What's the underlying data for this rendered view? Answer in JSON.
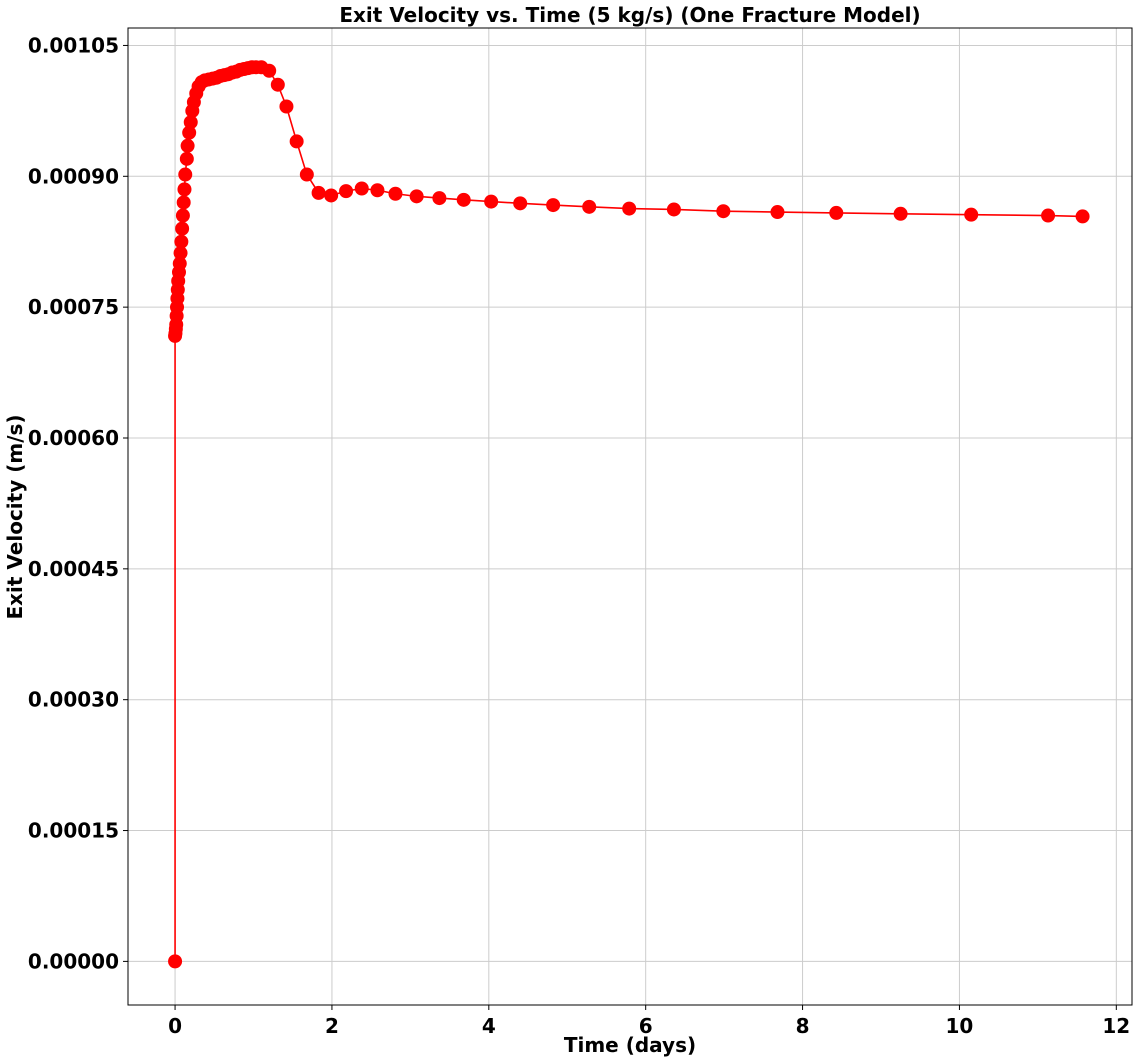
{
  "chart_data": {
    "type": "line",
    "title": "Exit Velocity vs. Time (5 kg/s) (One Fracture Model)",
    "xlabel": "Time (days)",
    "ylabel": "Exit Velocity (m/s)",
    "xlim": [
      -0.6,
      12.2
    ],
    "ylim": [
      -5e-05,
      0.00107
    ],
    "x_ticks": [
      0,
      2,
      4,
      6,
      8,
      10,
      12
    ],
    "x_tick_labels": [
      "0",
      "2",
      "4",
      "6",
      "8",
      "10",
      "12"
    ],
    "y_ticks": [
      0.0,
      0.00015,
      0.0003,
      0.00045,
      0.0006,
      0.00075,
      0.0009,
      0.00105
    ],
    "y_tick_labels": [
      "0.00000",
      "0.00015",
      "0.00030",
      "0.00045",
      "0.00060",
      "0.00075",
      "0.00090",
      "0.00105"
    ],
    "grid": true,
    "series": [
      {
        "color": "#ff0000",
        "marker": "circle",
        "x": [
          0.0,
          0.0,
          0.005,
          0.01,
          0.015,
          0.02,
          0.025,
          0.03,
          0.035,
          0.04,
          0.05,
          0.06,
          0.07,
          0.08,
          0.09,
          0.1,
          0.11,
          0.12,
          0.13,
          0.15,
          0.16,
          0.18,
          0.2,
          0.22,
          0.24,
          0.27,
          0.3,
          0.34,
          0.38,
          0.43,
          0.48,
          0.53,
          0.58,
          0.63,
          0.68,
          0.73,
          0.78,
          0.83,
          0.88,
          0.93,
          0.98,
          1.03,
          1.1,
          1.2,
          1.31,
          1.42,
          1.55,
          1.68,
          1.83,
          1.99,
          2.18,
          2.38,
          2.58,
          2.81,
          3.08,
          3.37,
          3.68,
          4.03,
          4.4,
          4.82,
          5.28,
          5.79,
          6.36,
          6.99,
          7.68,
          8.43,
          9.25,
          10.15,
          11.13,
          11.57
        ],
        "y": [
          0.0,
          0.000717,
          0.00072,
          0.000725,
          0.00073,
          0.00074,
          0.00075,
          0.00076,
          0.00077,
          0.00078,
          0.00079,
          0.0008,
          0.000812,
          0.000825,
          0.00084,
          0.000855,
          0.00087,
          0.000885,
          0.000902,
          0.00092,
          0.000935,
          0.00095,
          0.000962,
          0.000975,
          0.000985,
          0.000995,
          0.001003,
          0.001008,
          0.00101,
          0.001011,
          0.001012,
          0.001013,
          0.001015,
          0.001016,
          0.001017,
          0.001019,
          0.00102,
          0.001022,
          0.001023,
          0.001024,
          0.001025,
          0.001025,
          0.001025,
          0.001021,
          0.001005,
          0.00098,
          0.00094,
          0.000902,
          0.000881,
          0.000878,
          0.000883,
          0.000886,
          0.000884,
          0.00088,
          0.000877,
          0.000875,
          0.000873,
          0.000871,
          0.000869,
          0.000867,
          0.000865,
          0.000863,
          0.000862,
          0.00086,
          0.000859,
          0.000858,
          0.000857,
          0.000856,
          0.000855,
          0.000854
        ]
      }
    ]
  }
}
